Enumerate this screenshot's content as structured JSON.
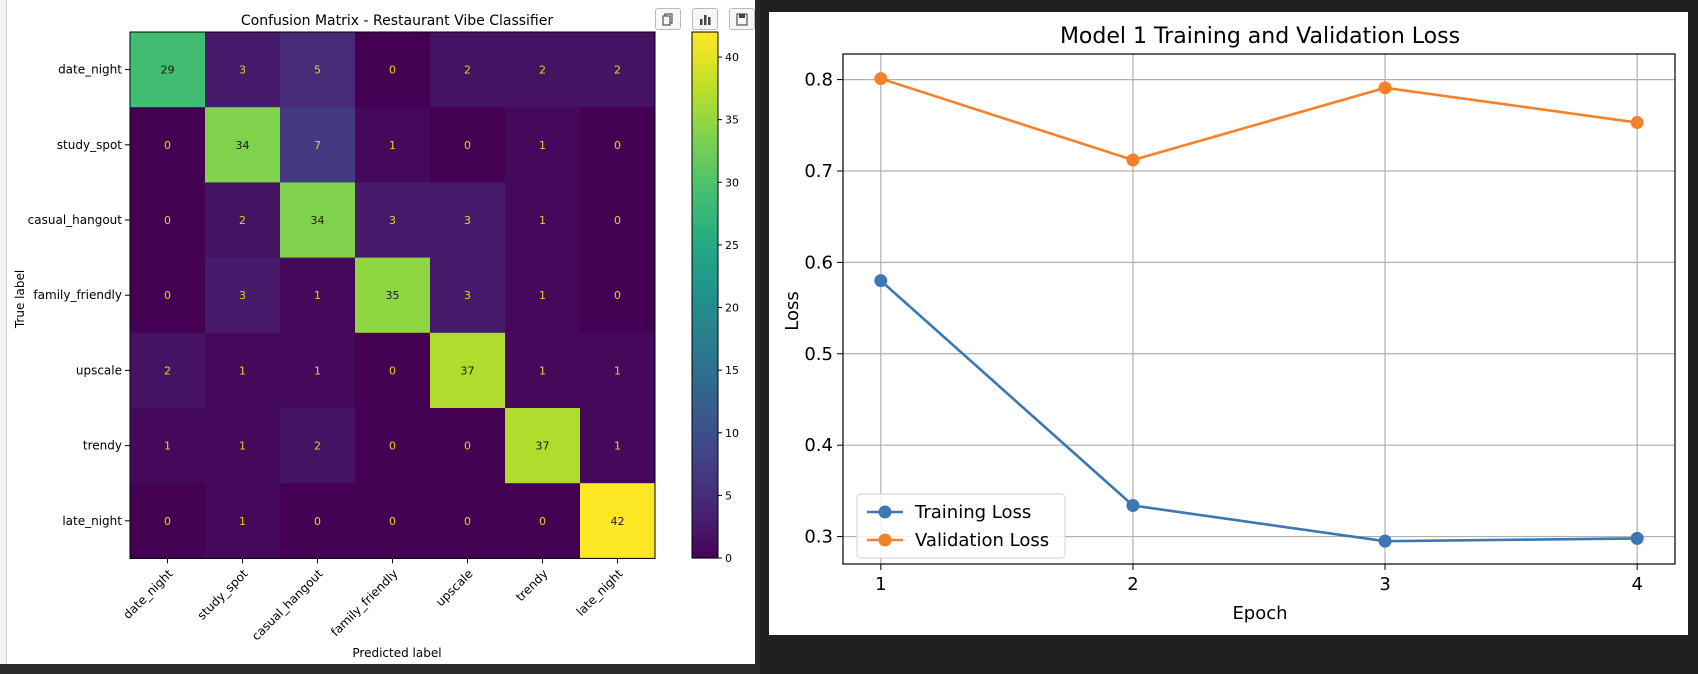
{
  "toolbar": {
    "buttons": [
      {
        "name": "copy-icon"
      },
      {
        "name": "bar-chart-icon"
      },
      {
        "name": "save-icon"
      }
    ]
  },
  "chart_data": [
    {
      "type": "heatmap",
      "title": "Confusion Matrix - Restaurant Vibe Classifier",
      "xlabel": "Predicted label",
      "ylabel": "True label",
      "x_categories": [
        "date_night",
        "study_spot",
        "casual_hangout",
        "family_friendly",
        "upscale",
        "trendy",
        "late_night"
      ],
      "y_categories": [
        "date_night",
        "study_spot",
        "casual_hangout",
        "family_friendly",
        "upscale",
        "trendy",
        "late_night"
      ],
      "values": [
        [
          29,
          3,
          5,
          0,
          2,
          2,
          2
        ],
        [
          0,
          34,
          7,
          1,
          0,
          1,
          0
        ],
        [
          0,
          2,
          34,
          3,
          3,
          1,
          0
        ],
        [
          0,
          3,
          1,
          35,
          3,
          1,
          0
        ],
        [
          2,
          1,
          1,
          0,
          37,
          1,
          1
        ],
        [
          1,
          1,
          2,
          0,
          0,
          37,
          1
        ],
        [
          0,
          1,
          0,
          0,
          0,
          0,
          42
        ]
      ],
      "colormap": "viridis",
      "colorbar": {
        "min": 0,
        "max": 42,
        "ticks": [
          0,
          5,
          10,
          15,
          20,
          25,
          30,
          35,
          40
        ]
      }
    },
    {
      "type": "line",
      "title": "Model 1 Training and Validation Loss",
      "xlabel": "Epoch",
      "ylabel": "Loss",
      "x": [
        1,
        2,
        3,
        4
      ],
      "xlim": [
        0.85,
        4.15
      ],
      "ylim": [
        0.27,
        0.828
      ],
      "xticks": [
        1,
        2,
        3,
        4
      ],
      "yticks": [
        0.3,
        0.4,
        0.5,
        0.6,
        0.7,
        0.8
      ],
      "grid": true,
      "legend_position": "lower-left",
      "series": [
        {
          "name": "Training Loss",
          "color": "#3a77b3",
          "values": [
            0.58,
            0.334,
            0.295,
            0.298
          ]
        },
        {
          "name": "Validation Loss",
          "color": "#f4822a",
          "values": [
            0.801,
            0.712,
            0.791,
            0.753
          ]
        }
      ]
    }
  ]
}
